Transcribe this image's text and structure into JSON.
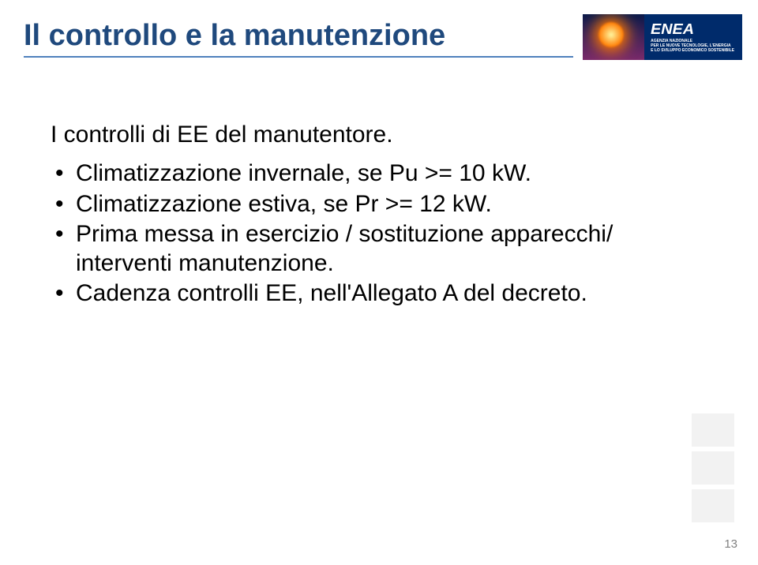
{
  "colors": {
    "title": "#1f497d",
    "title_underline": "#4f81bd",
    "body": "#000000",
    "logo_bg": "#002b6b",
    "logo_sun_inner": "#fff7a0",
    "logo_sun_outer": "#ff7a00",
    "logo_sky_top": "#0a1a4a",
    "logo_sky_bottom": "#7a2a6a",
    "pagenum": "#808080",
    "square": "#f2f2f2"
  },
  "header": {
    "title": "Il controllo e la manutenzione",
    "logo_brand": "ENEA",
    "logo_sub_line1": "AGENZIA NAZIONALE",
    "logo_sub_line2": "PER LE NUOVE TECNOLOGIE, L'ENERGIA",
    "logo_sub_line3": "E LO SVILUPPO ECONOMICO SOSTENIBILE"
  },
  "content": {
    "intro": "I controlli di EE del manutentore.",
    "bullets": [
      "Climatizzazione invernale, se Pu >= 10 kW.",
      "Climatizzazione estiva, se Pr >= 12 kW.",
      "Prima messa in esercizio / sostituzione apparecchi/ interventi manutenzione.",
      "Cadenza controlli EE, nell'Allegato A del decreto."
    ]
  },
  "page_number": "13"
}
